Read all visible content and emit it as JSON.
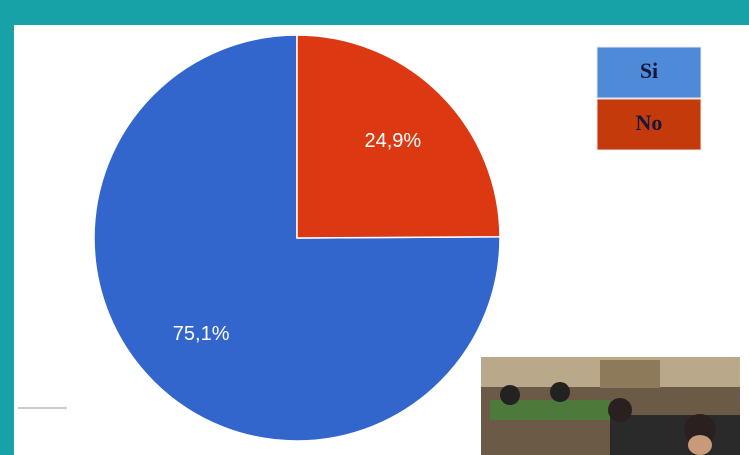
{
  "chart_data": {
    "type": "pie",
    "categories": [
      "Si",
      "No"
    ],
    "values": [
      75.1,
      24.9
    ],
    "value_labels": [
      "75,1%",
      "24,9%"
    ],
    "colors": [
      "#3366cc",
      "#dc3912"
    ],
    "legend_colors": [
      "#4f8ad9",
      "#c43a0b"
    ]
  }
}
